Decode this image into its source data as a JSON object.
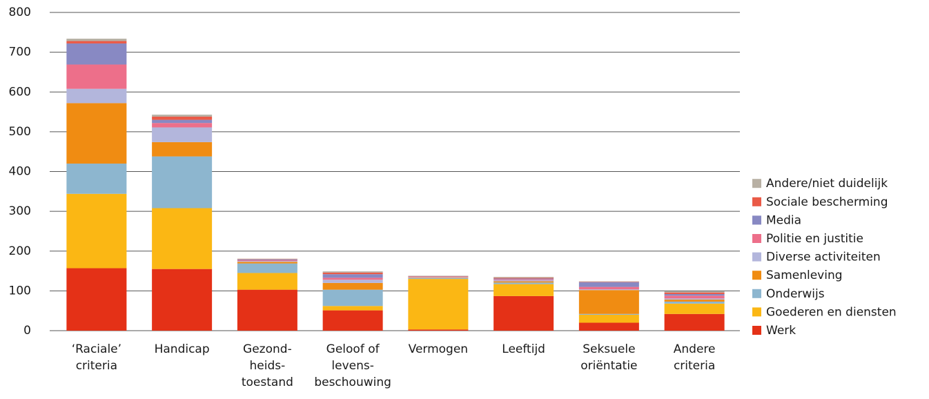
{
  "chart_data": {
    "type": "stacked-bar",
    "categories": [
      [
        "‘Raciale’",
        "criteria"
      ],
      [
        "Handicap"
      ],
      [
        "Gezond-",
        "heids-",
        "toestand"
      ],
      [
        "Geloof of",
        "levens-",
        "beschouwing"
      ],
      [
        "Vermogen"
      ],
      [
        "Leeftijd"
      ],
      [
        "Seksuele",
        "oriëntatie"
      ],
      [
        "Andere",
        "criteria"
      ]
    ],
    "series": [
      {
        "name": "Werk",
        "color": "#e43117",
        "values": [
          157,
          155,
          103,
          51,
          3,
          87,
          20,
          42
        ]
      },
      {
        "name": "Goederen en diensten",
        "color": "#fbb714",
        "values": [
          187,
          153,
          42,
          11,
          127,
          30,
          20,
          26
        ]
      },
      {
        "name": "Onderwijs",
        "color": "#8db6cf",
        "values": [
          76,
          130,
          24,
          41,
          2,
          4,
          2,
          5
        ]
      },
      {
        "name": "Samenleving",
        "color": "#f08c12",
        "values": [
          152,
          36,
          4,
          17,
          1,
          3,
          60,
          5
        ]
      },
      {
        "name": "Diverse activiteiten",
        "color": "#b3b6dc",
        "values": [
          36,
          37,
          2,
          8,
          1,
          3,
          2,
          3
        ]
      },
      {
        "name": "Politie en justitie",
        "color": "#ed6f8a",
        "values": [
          61,
          11,
          2,
          5,
          1,
          2,
          6,
          7
        ]
      },
      {
        "name": "Media",
        "color": "#8889c3",
        "values": [
          53,
          8,
          2,
          9,
          1,
          2,
          12,
          4
        ]
      },
      {
        "name": "Sociale bescherming",
        "color": "#ea5a47",
        "values": [
          6,
          8,
          1,
          4,
          1,
          2,
          1,
          4
        ]
      },
      {
        "name": "Andere/niet duidelijk",
        "color": "#b8b0a4",
        "values": [
          6,
          5,
          1,
          3,
          1,
          2,
          1,
          3
        ]
      }
    ],
    "ylim": [
      0,
      800
    ],
    "yticks": [
      0,
      100,
      200,
      300,
      400,
      500,
      600,
      700,
      800
    ],
    "grid": true,
    "legend": "right"
  }
}
